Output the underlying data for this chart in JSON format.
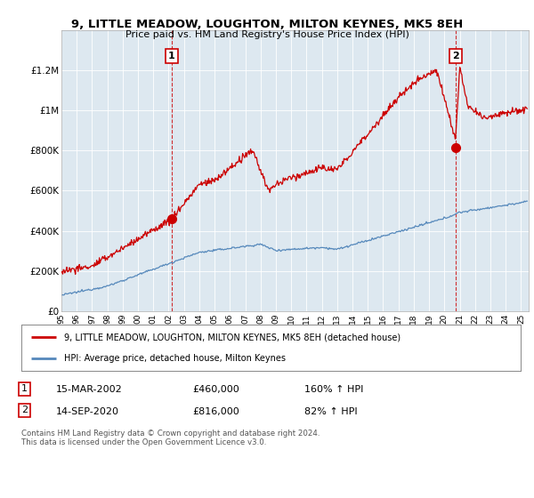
{
  "title_line1": "9, LITTLE MEADOW, LOUGHTON, MILTON KEYNES, MK5 8EH",
  "title_line2": "Price paid vs. HM Land Registry's House Price Index (HPI)",
  "ylim": [
    0,
    1400000
  ],
  "yticks": [
    0,
    200000,
    400000,
    600000,
    800000,
    1000000,
    1200000
  ],
  "ytick_labels": [
    "£0",
    "£200K",
    "£400K",
    "£600K",
    "£800K",
    "£1M",
    "£1.2M"
  ],
  "xlim_start": 1995,
  "xlim_end": 2025.5,
  "transaction1_date_x": 2002.2,
  "transaction1_price": 460000,
  "transaction1_label": "1",
  "transaction2_date_x": 2020.71,
  "transaction2_price": 816000,
  "transaction2_label": "2",
  "legend_line1": "9, LITTLE MEADOW, LOUGHTON, MILTON KEYNES, MK5 8EH (detached house)",
  "legend_line2": "HPI: Average price, detached house, Milton Keynes",
  "table_row1": [
    "1",
    "15-MAR-2002",
    "£460,000",
    "160% ↑ HPI"
  ],
  "table_row2": [
    "2",
    "14-SEP-2020",
    "£816,000",
    "82% ↑ HPI"
  ],
  "footnote": "Contains HM Land Registry data © Crown copyright and database right 2024.\nThis data is licensed under the Open Government Licence v3.0.",
  "red_color": "#cc0000",
  "blue_color": "#5588bb",
  "plot_bg_color": "#dde8f0",
  "background_color": "#ffffff",
  "grid_color": "#ffffff"
}
